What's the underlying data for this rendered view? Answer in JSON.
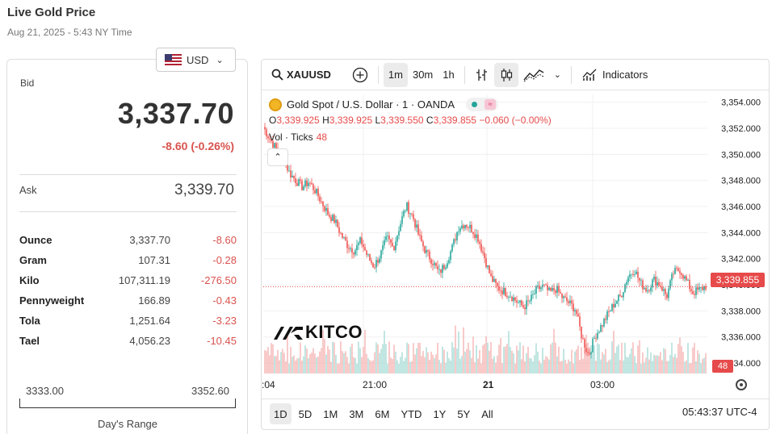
{
  "header": {
    "title": "Live Gold Price",
    "timestamp": "Aug 21, 2025 - 5:43 NY Time"
  },
  "currency": {
    "selected": "USD",
    "flag_icon": "us-flag-icon"
  },
  "bid": {
    "label": "Bid",
    "value": "3,337.70",
    "change": "-8.60 (-0.26%)"
  },
  "ask": {
    "label": "Ask",
    "value": "3,339.70"
  },
  "units": [
    {
      "name": "Ounce",
      "price": "3,337.70",
      "change": "-8.60"
    },
    {
      "name": "Gram",
      "price": "107.31",
      "change": "-0.28"
    },
    {
      "name": "Kilo",
      "price": "107,311.19",
      "change": "-276.50"
    },
    {
      "name": "Pennyweight",
      "price": "166.89",
      "change": "-0.43"
    },
    {
      "name": "Tola",
      "price": "1,251.64",
      "change": "-3.23"
    },
    {
      "name": "Tael",
      "price": "4,056.23",
      "change": "-10.45"
    }
  ],
  "day_range": {
    "low": "3333.00",
    "high": "3352.60",
    "label": "Day's Range"
  },
  "chart": {
    "symbol": "XAUUSD",
    "intervals": [
      "1m",
      "30m",
      "1h"
    ],
    "active_interval": "1m",
    "indicators_label": "Indicators",
    "legend_title": "Gold Spot / U.S. Dollar · 1 · OANDA",
    "ohlc": {
      "o_key": "O",
      "o": "3,339.925",
      "h_key": "H",
      "h": "3,339.925",
      "l_key": "L",
      "l": "3,339.550",
      "c_key": "C",
      "c": "3,339.855",
      "chg": "−0.060 (−0.00%)"
    },
    "vol_label": "Vol · Ticks",
    "vol_value": "48",
    "last_price": "3,339.855",
    "last_vol": "48",
    "brand": "KITCO",
    "time_labels": [
      ":04",
      "21:00",
      "21",
      "03:00"
    ],
    "ranges": [
      "1D",
      "5D",
      "1M",
      "3M",
      "6M",
      "YTD",
      "1Y",
      "5Y",
      "All"
    ],
    "active_range": "1D",
    "clock": "05:43:37 UTC-4",
    "colors": {
      "up": "#26a69a",
      "down": "#ef5350",
      "accent": "#e64a4a"
    }
  },
  "chart_data": {
    "type": "line",
    "title": "Gold Spot / U.S. Dollar · 1 · OANDA",
    "y_ticks": [
      "3,354.000",
      "3,352.000",
      "3,350.000",
      "3,348.000",
      "3,346.000",
      "3,344.000",
      "3,342.000",
      "3,340.000",
      "3,338.000",
      "3,336.000",
      "3,334.000"
    ],
    "ylim": [
      3333.2,
      3354.6
    ],
    "x_ticks": [
      ":04",
      "21:00",
      "21",
      "03:00"
    ],
    "series": [
      {
        "values": [
          3352.1,
          3351.2,
          3350.4,
          3349.8,
          3348.6,
          3348.0,
          3347.5,
          3347.9,
          3347.2,
          3346.3,
          3345.4,
          3344.9,
          3343.8,
          3343.0,
          3342.6,
          3343.4,
          3342.2,
          3341.4,
          3342.3,
          3343.6,
          3342.8,
          3344.6,
          3346.1,
          3345.2,
          3343.6,
          3342.5,
          3341.8,
          3340.9,
          3341.6,
          3342.8,
          3344.4,
          3344.7,
          3344.3,
          3343.6,
          3342.1,
          3340.5,
          3339.8,
          3339.5,
          3339.2,
          3338.7,
          3338.3,
          3338.8,
          3339.6,
          3339.9,
          3339.4,
          3339.7,
          3339.0,
          3338.6,
          3338.1,
          3335.9,
          3334.6,
          3336.1,
          3336.9,
          3337.8,
          3338.6,
          3339.2,
          3340.6,
          3341.2,
          3340.1,
          3339.6,
          3340.4,
          3340.0,
          3339.1,
          3340.9,
          3341.2,
          3340.3,
          3339.4,
          3339.6,
          3339.9
        ]
      }
    ]
  }
}
